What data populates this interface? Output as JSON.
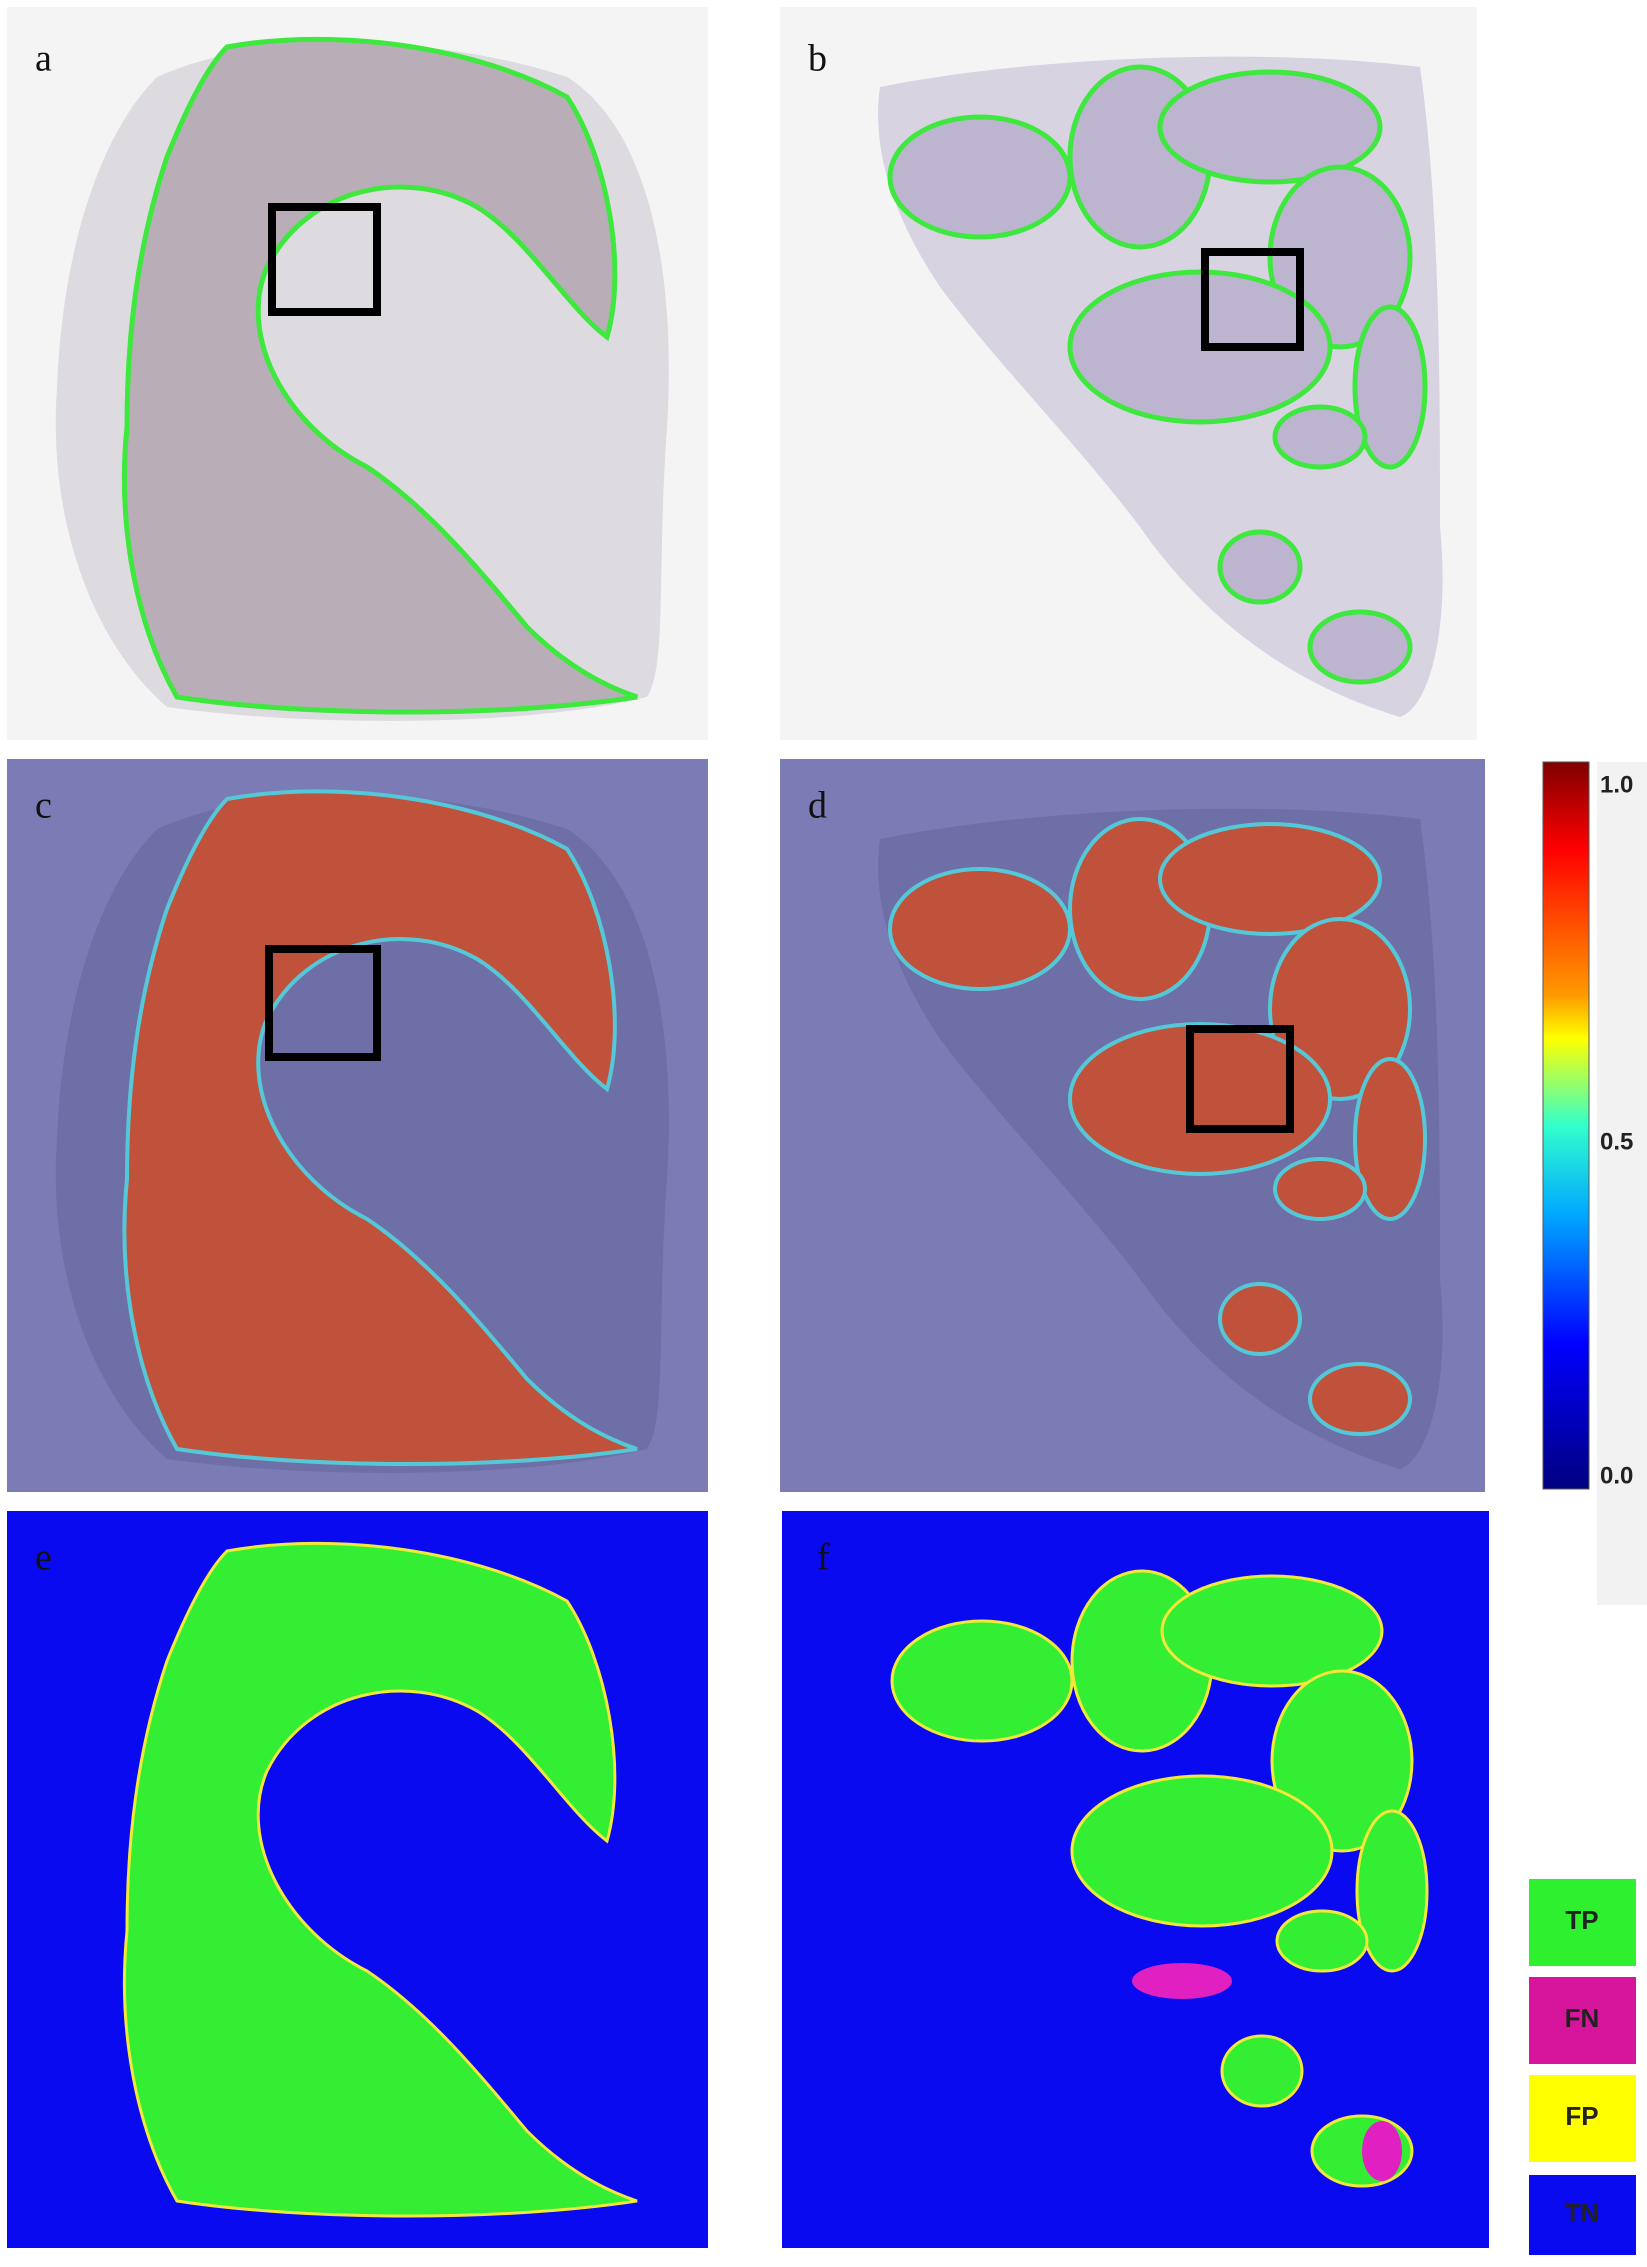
{
  "panels": [
    {
      "label": "a"
    },
    {
      "label": "b"
    },
    {
      "label": "c"
    },
    {
      "label": "d"
    },
    {
      "label": "e"
    },
    {
      "label": "f"
    }
  ],
  "colorbar": {
    "ticks": [
      "1.0",
      "0.5",
      "0.0"
    ]
  },
  "legend": {
    "items": [
      "TP",
      "FN",
      "FP",
      "TN"
    ]
  }
}
